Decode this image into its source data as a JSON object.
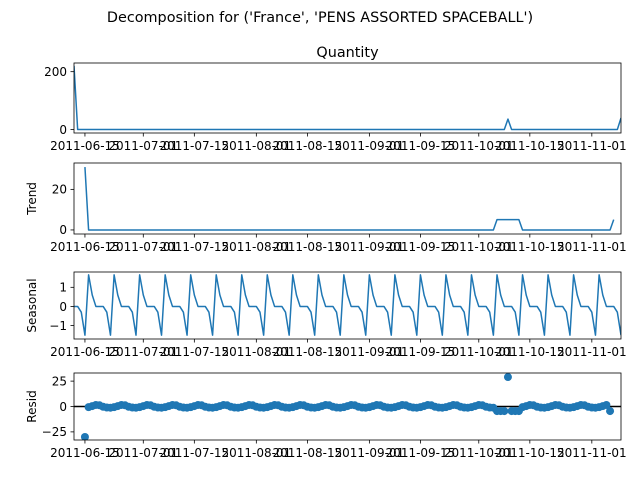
{
  "figure": {
    "suptitle": "Decomposition for ('France', 'PENS ASSORTED SPACEBALL')"
  },
  "colors": {
    "series": "#1f77b4",
    "axes": "#000000",
    "background": "#ffffff"
  },
  "chart_data": [
    {
      "type": "line",
      "title": "Quantity",
      "ylabel": "",
      "xlim": [
        "2011-06-12",
        "2011-11-09"
      ],
      "ylim": [
        -12,
        230
      ],
      "yticks": [
        0,
        200
      ],
      "xticklabels": [
        "2011-06-15",
        "2011-07-01",
        "2011-07-15",
        "2011-08-01",
        "2011-08-15",
        "2011-09-01",
        "2011-09-15",
        "2011-10-01",
        "2011-10-15",
        "2011-11-01"
      ],
      "series": [
        {
          "x": [
            "2011-06-12",
            "2011-06-13",
            "2011-10-08",
            "2011-10-09",
            "2011-10-10",
            "2011-11-08",
            "2011-11-09"
          ],
          "values": [
            220,
            0,
            0,
            36,
            0,
            0,
            40
          ]
        }
      ]
    },
    {
      "type": "line",
      "title": "",
      "ylabel": "Trend",
      "xlim": [
        "2011-06-12",
        "2011-11-09"
      ],
      "ylim": [
        -2,
        33
      ],
      "yticks": [
        0,
        20
      ],
      "xticklabels": [
        "2011-06-15",
        "2011-07-01",
        "2011-07-15",
        "2011-08-01",
        "2011-08-15",
        "2011-09-01",
        "2011-09-15",
        "2011-10-01",
        "2011-10-15",
        "2011-11-01"
      ],
      "series": [
        {
          "x": [
            "2011-06-15",
            "2011-06-16",
            "2011-10-05",
            "2011-10-06",
            "2011-10-12",
            "2011-10-13",
            "2011-11-06",
            "2011-11-07"
          ],
          "values": [
            31,
            0,
            0,
            5.1,
            5.1,
            0,
            0,
            5.1
          ]
        }
      ]
    },
    {
      "type": "line",
      "title": "",
      "ylabel": "Seasonal",
      "xlim": [
        "2011-06-12",
        "2011-11-09"
      ],
      "ylim": [
        -1.7,
        1.8
      ],
      "yticks": [
        -1,
        0,
        1
      ],
      "xticklabels": [
        "2011-06-15",
        "2011-07-01",
        "2011-07-15",
        "2011-08-01",
        "2011-08-15",
        "2011-09-01",
        "2011-09-15",
        "2011-10-01",
        "2011-10-15",
        "2011-11-01"
      ],
      "period_days": 7,
      "pattern": [
        0,
        0,
        -0.3,
        -1.5,
        1.65,
        0.6,
        0
      ],
      "series_start": "2011-06-12",
      "series_end": "2011-11-09"
    },
    {
      "type": "scatter",
      "title": "",
      "ylabel": "Resid",
      "xlim": [
        "2011-06-12",
        "2011-11-09"
      ],
      "ylim": [
        -33,
        33
      ],
      "yticks": [
        -25,
        0,
        25
      ],
      "xticklabels": [
        "2011-06-15",
        "2011-07-01",
        "2011-07-15",
        "2011-08-01",
        "2011-08-15",
        "2011-09-01",
        "2011-09-15",
        "2011-10-01",
        "2011-10-15",
        "2011-11-01"
      ],
      "baseline": 0,
      "series_start": "2011-06-15",
      "series_end": "2011-11-06",
      "background_values": [
        -1.2,
        -0.6,
        0.4,
        1.5,
        1.2,
        -0.3,
        -1.0
      ],
      "outliers": [
        {
          "x": "2011-06-15",
          "value": -30
        },
        {
          "x": "2011-10-09",
          "value": 29
        },
        {
          "x": "2011-10-06",
          "value": -4.5
        },
        {
          "x": "2011-10-07",
          "value": -4.5
        },
        {
          "x": "2011-10-08",
          "value": -4.5
        },
        {
          "x": "2011-10-10",
          "value": -4.5
        },
        {
          "x": "2011-10-11",
          "value": -4.5
        },
        {
          "x": "2011-10-12",
          "value": -4.5
        },
        {
          "x": "2011-11-06",
          "value": -4.5
        }
      ]
    }
  ]
}
